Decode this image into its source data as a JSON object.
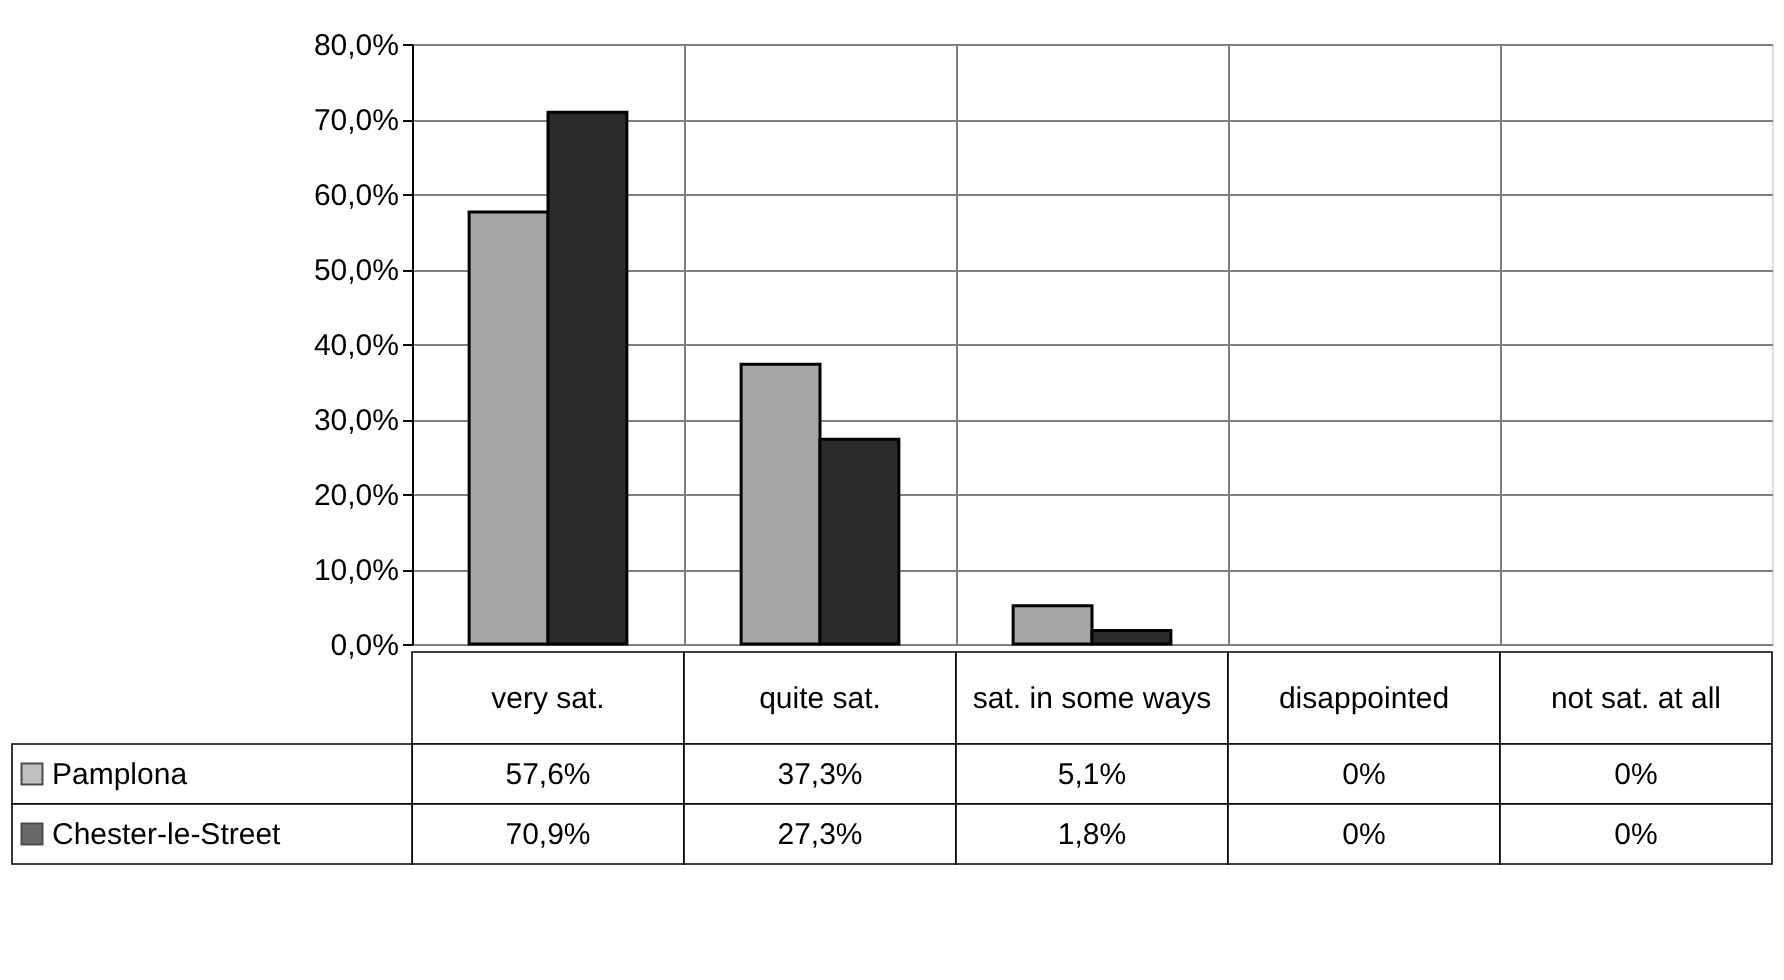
{
  "chart_data": {
    "type": "bar",
    "categories": [
      "very sat.",
      "quite sat.",
      "sat. in some ways",
      "disappointed",
      "not sat. at all"
    ],
    "series": [
      {
        "name": "Pamplona",
        "color": "#a6a6a6",
        "values": [
          57.6,
          37.3,
          5.1,
          0,
          0
        ],
        "value_labels": [
          "57,6%",
          "37,3%",
          "5,1%",
          "0%",
          "0%"
        ]
      },
      {
        "name": "Chester-le-Street",
        "color": "#2b2b2b",
        "values": [
          70.9,
          27.3,
          1.8,
          0,
          0
        ],
        "value_labels": [
          "70,9%",
          "27,3%",
          "1,8%",
          "0%",
          "0%"
        ]
      }
    ],
    "ylim": [
      0,
      80
    ],
    "yticks": [
      {
        "value": 0,
        "label": "0,0%"
      },
      {
        "value": 10,
        "label": "10,0%"
      },
      {
        "value": 20,
        "label": "20,0%"
      },
      {
        "value": 30,
        "label": "30,0%"
      },
      {
        "value": 40,
        "label": "40,0%"
      },
      {
        "value": 50,
        "label": "50,0%"
      },
      {
        "value": 60,
        "label": "60,0%"
      },
      {
        "value": 70,
        "label": "70,0%"
      },
      {
        "value": 80,
        "label": "80,0%"
      }
    ],
    "grid": true,
    "legend": "bottom"
  }
}
